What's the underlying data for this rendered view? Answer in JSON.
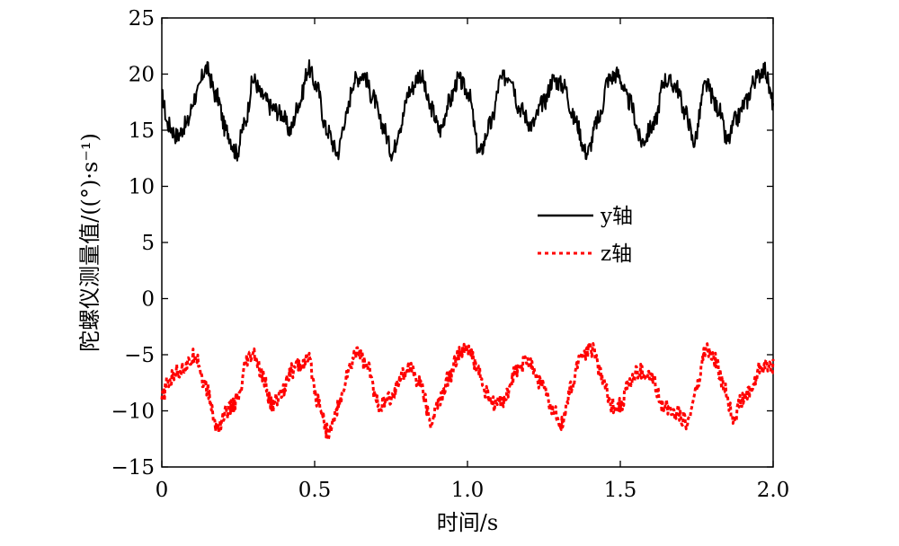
{
  "chart_data": {
    "type": "line",
    "title": "",
    "xlabel": "时间/s",
    "ylabel": "陀螺仪测量值/((°)·s⁻¹)",
    "xlim": [
      0,
      2.0
    ],
    "ylim": [
      -15,
      25
    ],
    "xticks": [
      {
        "value": 0,
        "label": "0"
      },
      {
        "value": 0.5,
        "label": "0.5"
      },
      {
        "value": 1.0,
        "label": "1.0"
      },
      {
        "value": 1.5,
        "label": "1.5"
      },
      {
        "value": 2.0,
        "label": "2.0"
      }
    ],
    "yticks": [
      {
        "value": -15,
        "label": "−15"
      },
      {
        "value": -10,
        "label": "−10"
      },
      {
        "value": -5,
        "label": "−5"
      },
      {
        "value": 0,
        "label": "0"
      },
      {
        "value": 5,
        "label": "5"
      },
      {
        "value": 10,
        "label": "10"
      },
      {
        "value": 15,
        "label": "15"
      },
      {
        "value": 20,
        "label": "20"
      },
      {
        "value": 25,
        "label": "25"
      }
    ],
    "grid": false,
    "legend_position": "center-right",
    "series": [
      {
        "name": "y轴",
        "color": "#000000",
        "style": "solid",
        "x": [
          0,
          0.02,
          0.05,
          0.08,
          0.11,
          0.145,
          0.18,
          0.21,
          0.245,
          0.27,
          0.3,
          0.33,
          0.36,
          0.39,
          0.42,
          0.45,
          0.48,
          0.505,
          0.54,
          0.575,
          0.6,
          0.63,
          0.66,
          0.69,
          0.72,
          0.755,
          0.78,
          0.81,
          0.845,
          0.88,
          0.91,
          0.94,
          0.97,
          1.0,
          1.04,
          1.075,
          1.11,
          1.14,
          1.17,
          1.21,
          1.25,
          1.28,
          1.315,
          1.35,
          1.39,
          1.43,
          1.46,
          1.49,
          1.53,
          1.57,
          1.61,
          1.645,
          1.68,
          1.715,
          1.74,
          1.78,
          1.82,
          1.85,
          1.88,
          1.91,
          1.94,
          1.97,
          2.0
        ],
        "values": [
          18,
          15.5,
          14.5,
          15.5,
          18,
          20.5,
          18,
          15,
          13,
          15.5,
          19.5,
          18,
          17,
          16.5,
          15,
          17.5,
          20.5,
          19,
          15,
          13,
          16,
          19.5,
          20,
          18,
          15.5,
          13,
          15.5,
          18.5,
          20,
          17,
          15,
          17.5,
          19.5,
          18.5,
          13,
          15.5,
          19.5,
          20,
          17,
          15.5,
          17.5,
          19.5,
          19,
          16,
          13,
          16,
          19.5,
          20,
          17.5,
          14,
          15.5,
          19.5,
          19,
          16.5,
          14,
          19,
          17,
          14,
          16,
          17.5,
          19.5,
          20.5,
          17.5
        ]
      },
      {
        "name": "z轴",
        "color": "#ff0000",
        "style": "dotted",
        "x": [
          0,
          0.02,
          0.05,
          0.08,
          0.11,
          0.145,
          0.18,
          0.215,
          0.25,
          0.28,
          0.3,
          0.33,
          0.36,
          0.39,
          0.42,
          0.45,
          0.48,
          0.51,
          0.545,
          0.58,
          0.61,
          0.64,
          0.67,
          0.71,
          0.75,
          0.78,
          0.81,
          0.845,
          0.88,
          0.91,
          0.94,
          0.97,
          1.0,
          1.03,
          1.06,
          1.09,
          1.12,
          1.16,
          1.2,
          1.24,
          1.28,
          1.31,
          1.34,
          1.37,
          1.41,
          1.44,
          1.47,
          1.5,
          1.53,
          1.56,
          1.6,
          1.64,
          1.68,
          1.72,
          1.75,
          1.78,
          1.81,
          1.84,
          1.87,
          1.9,
          1.93,
          1.96,
          2.0
        ],
        "values": [
          -9,
          -7.5,
          -6.5,
          -6,
          -5,
          -8,
          -11.5,
          -10,
          -9,
          -5.5,
          -5,
          -7,
          -9.5,
          -8.5,
          -6.5,
          -6,
          -5.5,
          -9,
          -12,
          -9.5,
          -6.5,
          -4.5,
          -6,
          -9.5,
          -9,
          -7,
          -6,
          -7.5,
          -11,
          -9,
          -7,
          -5,
          -4.5,
          -6,
          -8.5,
          -9.5,
          -9,
          -6.5,
          -5.5,
          -7.5,
          -10,
          -11,
          -8,
          -5,
          -4.5,
          -7,
          -9.5,
          -9.5,
          -7.5,
          -6.5,
          -7,
          -9.5,
          -10,
          -11,
          -8,
          -4.5,
          -5.5,
          -8,
          -10.5,
          -9,
          -8,
          -6,
          -6
        ]
      }
    ]
  }
}
